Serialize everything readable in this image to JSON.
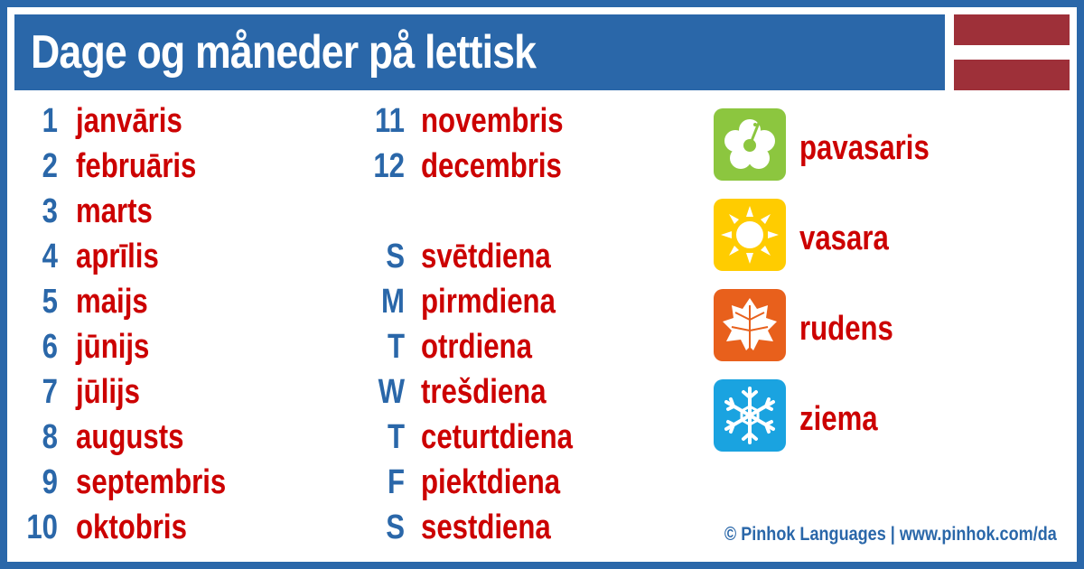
{
  "title": "Dage og måneder på lettisk",
  "colors": {
    "accent": "#2a67a9",
    "word": "#cc0000",
    "flag_red": "#9e3039",
    "spring": "#8cc63f",
    "summer": "#ffcc00",
    "autumn": "#e8601c",
    "winter": "#1aa3e0"
  },
  "months": [
    {
      "num": "1",
      "word": "janvāris"
    },
    {
      "num": "2",
      "word": "februāris"
    },
    {
      "num": "3",
      "word": "marts"
    },
    {
      "num": "4",
      "word": "aprīlis"
    },
    {
      "num": "5",
      "word": "maijs"
    },
    {
      "num": "6",
      "word": "jūnijs"
    },
    {
      "num": "7",
      "word": "jūlijs"
    },
    {
      "num": "8",
      "word": "augusts"
    },
    {
      "num": "9",
      "word": "septembris"
    },
    {
      "num": "10",
      "word": "oktobris"
    },
    {
      "num": "11",
      "word": "novembris"
    },
    {
      "num": "12",
      "word": "decembris"
    }
  ],
  "days": [
    {
      "letter": "S",
      "word": "svētdiena"
    },
    {
      "letter": "M",
      "word": "pirmdiena"
    },
    {
      "letter": "T",
      "word": "otrdiena"
    },
    {
      "letter": "W",
      "word": "trešdiena"
    },
    {
      "letter": "T",
      "word": "ceturtdiena"
    },
    {
      "letter": "F",
      "word": "piektdiena"
    },
    {
      "letter": "S",
      "word": "sestdiena"
    }
  ],
  "seasons": [
    {
      "icon": "hibiscus-flower-icon",
      "word": "pavasaris"
    },
    {
      "icon": "sun-icon",
      "word": "vasara"
    },
    {
      "icon": "leaf-icon",
      "word": "rudens"
    },
    {
      "icon": "snowflake-icon",
      "word": "ziema"
    }
  ],
  "footer": "© Pinhok Languages | www.pinhok.com/da"
}
